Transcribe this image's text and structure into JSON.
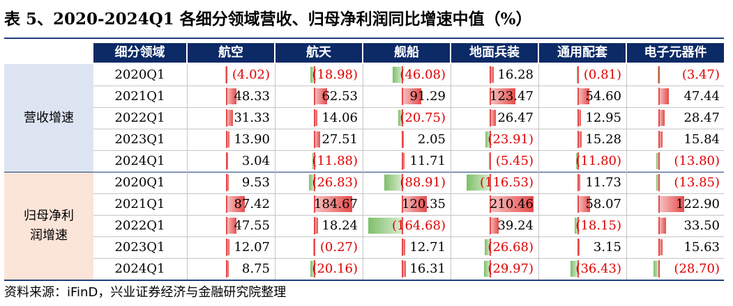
{
  "title": "表 5、2020-2024Q1 各细分领域营收、归母净利润同比增速中值（%）",
  "headers": [
    "细分领域",
    "航空",
    "航天",
    "舰船",
    "地面兵装",
    "通用配套",
    "电子元器件"
  ],
  "groups": [
    {
      "label": "营收增速",
      "rows": [
        {
          "period": "2020Q1",
          "values": [
            "(4.02)",
            "(18.98)",
            "(46.08)",
            "16.28",
            "(0.81)",
            "(3.47)"
          ],
          "numbers": [
            -4.02,
            -18.98,
            -46.08,
            16.28,
            -0.81,
            -3.47
          ]
        },
        {
          "period": "2021Q1",
          "values": [
            "48.33",
            "62.53",
            "91.29",
            "123.47",
            "54.60",
            "47.44"
          ],
          "numbers": [
            48.33,
            62.53,
            91.29,
            123.47,
            54.6,
            47.44
          ]
        },
        {
          "period": "2022Q1",
          "values": [
            "31.33",
            "14.06",
            "(20.75)",
            "26.47",
            "12.95",
            "28.47"
          ],
          "numbers": [
            31.33,
            14.06,
            -20.75,
            26.47,
            12.95,
            28.47
          ]
        },
        {
          "period": "2023Q1",
          "values": [
            "13.90",
            "27.51",
            "2.05",
            "(23.91)",
            "15.28",
            "15.84"
          ],
          "numbers": [
            13.9,
            27.51,
            2.05,
            -23.91,
            15.28,
            15.84
          ]
        },
        {
          "period": "2024Q1",
          "values": [
            "3.04",
            "(11.88)",
            "11.71",
            "(5.45)",
            "(11.80)",
            "(13.80)"
          ],
          "numbers": [
            3.04,
            -11.88,
            11.71,
            -5.45,
            -11.8,
            -13.8
          ]
        }
      ]
    },
    {
      "label": "归母净利润增速",
      "rows": [
        {
          "period": "2020Q1",
          "values": [
            "9.53",
            "(26.83)",
            "(88.91)",
            "(116.53)",
            "11.73",
            "(13.85)"
          ],
          "numbers": [
            9.53,
            -26.83,
            -88.91,
            -116.53,
            11.73,
            -13.85
          ]
        },
        {
          "period": "2021Q1",
          "values": [
            "87.42",
            "184.67",
            "120.35",
            "210.46",
            "58.07",
            "122.90"
          ],
          "numbers": [
            87.42,
            184.67,
            120.35,
            210.46,
            58.07,
            122.9
          ]
        },
        {
          "period": "2022Q1",
          "values": [
            "47.55",
            "18.24",
            "(164.68)",
            "39.24",
            "(18.15)",
            "33.50"
          ],
          "numbers": [
            47.55,
            18.24,
            -164.68,
            39.24,
            -18.15,
            33.5
          ]
        },
        {
          "period": "2023Q1",
          "values": [
            "12.07",
            "(0.27)",
            "12.71",
            "(26.68)",
            "3.15",
            "15.63"
          ],
          "numbers": [
            12.07,
            -0.27,
            12.71,
            -26.68,
            3.15,
            15.63
          ]
        },
        {
          "period": "2024Q1",
          "values": [
            "8.75",
            "(20.16)",
            "16.31",
            "(29.97)",
            "(36.43)",
            "(28.70)"
          ],
          "numbers": [
            8.75,
            -20.16,
            16.31,
            -29.97,
            -36.43,
            -28.7
          ]
        }
      ]
    }
  ],
  "source": "资料来源：iFinD，兴业证券经济与金融研究院整理",
  "colors": {
    "header_bg": "#0b2a66",
    "group1_bg": "#dde4f2",
    "group2_bg": "#fbe4d8",
    "positive_bar": "#e64b4b",
    "negative_bar": "#7fbf6a",
    "negative_text": "#e00000"
  }
}
